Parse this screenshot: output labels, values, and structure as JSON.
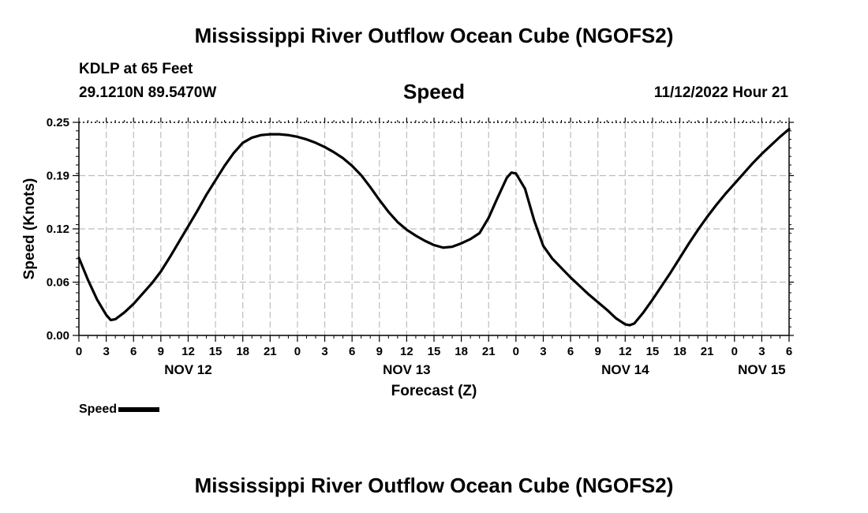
{
  "page": {
    "title": "Mississippi River Outflow Ocean Cube (NGOFS2)",
    "station": "KDLP at 65 Feet",
    "coordinates": "29.1210N  89.5470W",
    "timestamp": "11/12/2022 Hour 21",
    "footer_title": "Mississippi River Outflow Ocean Cube (NGOFS2)"
  },
  "chart_data": {
    "type": "line",
    "title": "Speed",
    "xlabel": "Forecast (Z)",
    "ylabel": "Speed (Knots)",
    "ylim": [
      0,
      0.25
    ],
    "yticks": [
      "0.00",
      "0.06",
      "0.12",
      "0.19",
      "0.25"
    ],
    "xlim": [
      0,
      78
    ],
    "xticks": [
      {
        "x": 0,
        "label": "0"
      },
      {
        "x": 3,
        "label": "3"
      },
      {
        "x": 6,
        "label": "6"
      },
      {
        "x": 9,
        "label": "9"
      },
      {
        "x": 12,
        "label": "12"
      },
      {
        "x": 15,
        "label": "15"
      },
      {
        "x": 18,
        "label": "18"
      },
      {
        "x": 21,
        "label": "21"
      },
      {
        "x": 24,
        "label": "0"
      },
      {
        "x": 27,
        "label": "3"
      },
      {
        "x": 30,
        "label": "6"
      },
      {
        "x": 33,
        "label": "9"
      },
      {
        "x": 36,
        "label": "12"
      },
      {
        "x": 39,
        "label": "15"
      },
      {
        "x": 42,
        "label": "18"
      },
      {
        "x": 45,
        "label": "21"
      },
      {
        "x": 48,
        "label": "0"
      },
      {
        "x": 51,
        "label": "3"
      },
      {
        "x": 54,
        "label": "6"
      },
      {
        "x": 57,
        "label": "9"
      },
      {
        "x": 60,
        "label": "12"
      },
      {
        "x": 63,
        "label": "15"
      },
      {
        "x": 66,
        "label": "18"
      },
      {
        "x": 69,
        "label": "21"
      },
      {
        "x": 72,
        "label": "0"
      },
      {
        "x": 75,
        "label": "3"
      },
      {
        "x": 78,
        "label": "6"
      }
    ],
    "date_labels": [
      {
        "x": 12,
        "label": "NOV 12"
      },
      {
        "x": 36,
        "label": "NOV 13"
      },
      {
        "x": 60,
        "label": "NOV 14"
      },
      {
        "x": 75,
        "label": "NOV 15"
      }
    ],
    "grid": true,
    "legend": {
      "position": "bottom-left",
      "entries": [
        "Speed"
      ]
    },
    "series": [
      {
        "name": "Speed",
        "color": "#000000",
        "x": [
          0,
          1,
          2,
          3,
          3.5,
          4,
          5,
          6,
          7,
          8,
          9,
          10,
          11,
          12,
          13,
          14,
          15,
          16,
          17,
          18,
          19,
          20,
          21,
          22,
          23,
          24,
          25,
          26,
          27,
          28,
          29,
          30,
          31,
          32,
          33,
          34,
          35,
          36,
          37,
          38,
          39,
          40,
          41,
          42,
          43,
          44,
          45,
          46,
          47,
          47.5,
          48,
          49,
          50,
          51,
          52,
          53,
          54,
          55,
          56,
          57,
          58,
          59,
          60,
          60.5,
          61,
          62,
          63,
          64,
          65,
          66,
          67,
          68,
          69,
          70,
          71,
          72,
          73,
          74,
          75,
          76,
          77,
          78
        ],
        "y": [
          0.091,
          0.065,
          0.042,
          0.024,
          0.018,
          0.019,
          0.027,
          0.037,
          0.049,
          0.061,
          0.075,
          0.092,
          0.11,
          0.128,
          0.146,
          0.165,
          0.182,
          0.199,
          0.214,
          0.226,
          0.232,
          0.235,
          0.236,
          0.236,
          0.235,
          0.233,
          0.23,
          0.226,
          0.221,
          0.215,
          0.208,
          0.199,
          0.188,
          0.174,
          0.159,
          0.145,
          0.133,
          0.124,
          0.117,
          0.111,
          0.106,
          0.103,
          0.104,
          0.108,
          0.113,
          0.12,
          0.138,
          0.162,
          0.185,
          0.191,
          0.19,
          0.172,
          0.135,
          0.105,
          0.09,
          0.079,
          0.068,
          0.058,
          0.048,
          0.039,
          0.03,
          0.02,
          0.013,
          0.012,
          0.014,
          0.027,
          0.042,
          0.058,
          0.074,
          0.091,
          0.108,
          0.124,
          0.139,
          0.153,
          0.166,
          0.178,
          0.19,
          0.202,
          0.213,
          0.223,
          0.233,
          0.242
        ]
      }
    ]
  }
}
